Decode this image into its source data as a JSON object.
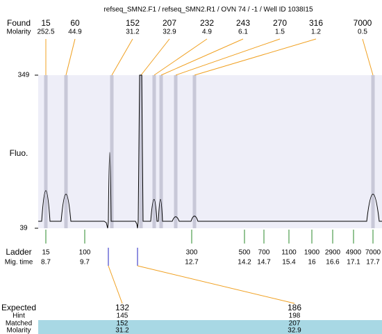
{
  "title": "refseq_SMN2.F1 / refseq_SMN2.R1 / OVN 74 / -1 / Well ID 1038I15",
  "found": {
    "label": "Found",
    "molarity_label": "Molarity",
    "sizes": [
      15,
      60,
      152,
      207,
      232,
      243,
      270,
      316,
      7000
    ],
    "molarity": [
      252.5,
      44.9,
      31.2,
      32.9,
      4.9,
      6.1,
      1.5,
      1.2,
      0.5
    ]
  },
  "fluo": {
    "label": "Fluo.",
    "ticks": [
      349,
      39
    ]
  },
  "ladder": {
    "label": "Ladder",
    "time_label": "Mig. time",
    "sizes": [
      15,
      100,
      300,
      500,
      700,
      1100,
      1900,
      2900,
      4900,
      7000
    ],
    "times": [
      8.7,
      9.7,
      12.7,
      14.2,
      14.7,
      15.4,
      16,
      16.6,
      17.1,
      17.7
    ]
  },
  "expected": {
    "labels": [
      "Expected",
      "Hint",
      "Matched",
      "Molarity"
    ],
    "columns": [
      [
        132,
        145,
        152,
        31.2
      ],
      [
        186,
        198,
        207,
        32.9
      ]
    ]
  }
}
